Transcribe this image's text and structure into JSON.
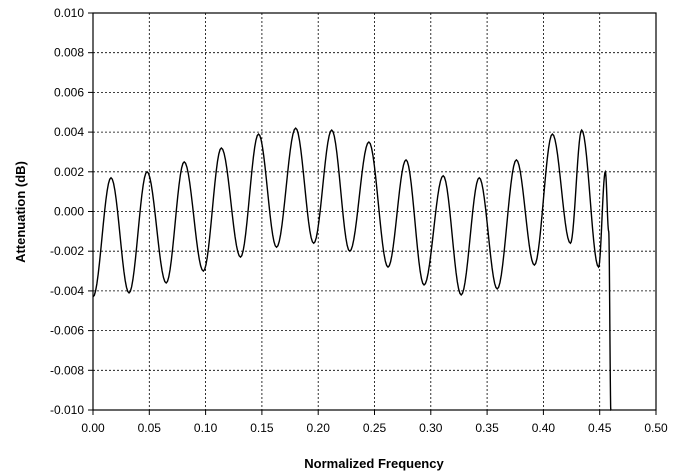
{
  "chart_data": {
    "type": "line",
    "title": "",
    "xlabel": "Normalized Frequency",
    "ylabel": "Attenuation (dB)",
    "xlim": [
      0.0,
      0.5
    ],
    "ylim": [
      -0.01,
      0.01
    ],
    "grid": true,
    "x_ticks": [
      "0.00",
      "0.05",
      "0.10",
      "0.15",
      "0.20",
      "0.25",
      "0.30",
      "0.35",
      "0.40",
      "0.45",
      "0.50"
    ],
    "y_ticks": [
      "-0.010",
      "-0.008",
      "-0.006",
      "-0.004",
      "-0.002",
      "0.000",
      "0.002",
      "0.004",
      "0.006",
      "0.008",
      "0.010"
    ],
    "series": [
      {
        "x": [
          0.0,
          0.016,
          0.032,
          0.048,
          0.065,
          0.081,
          0.098,
          0.114,
          0.131,
          0.147,
          0.163,
          0.18,
          0.196,
          0.212,
          0.228,
          0.245,
          0.262,
          0.278,
          0.294,
          0.311,
          0.327,
          0.343,
          0.359,
          0.376,
          0.392,
          0.408,
          0.424,
          0.434,
          0.449,
          0.455,
          0.458,
          0.46
        ],
        "y": [
          -0.0043,
          0.0017,
          -0.0041,
          0.002,
          -0.0036,
          0.0025,
          -0.003,
          0.0032,
          -0.0023,
          0.0039,
          -0.0018,
          0.0042,
          -0.0016,
          0.0041,
          -0.002,
          0.0035,
          -0.0028,
          0.0026,
          -0.0037,
          0.0018,
          -0.0042,
          0.0017,
          -0.0039,
          0.0026,
          -0.0027,
          0.0039,
          -0.0016,
          0.0041,
          -0.0028,
          0.002,
          -0.001,
          -0.0103
        ]
      }
    ]
  }
}
